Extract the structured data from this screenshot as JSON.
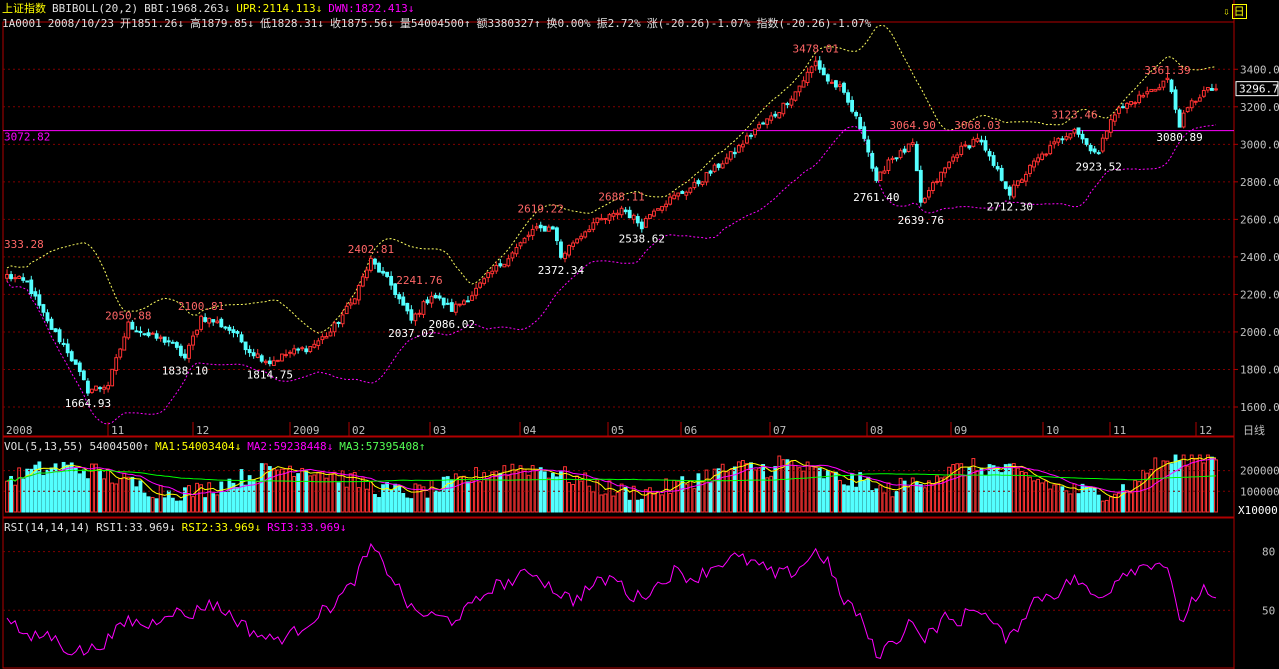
{
  "colors": {
    "up": "#ff3232",
    "down": "#54ffff",
    "upper": "#ffff60",
    "lower": "#ff00ff",
    "grid": "#800000",
    "axis": "#b00000",
    "level": "#ff00ff",
    "ma1": "#ffff00",
    "ma2": "#ff00ff",
    "ma3": "#00ff00",
    "rsi": "#ff00ff",
    "text": "#c0c0c0"
  },
  "header": {
    "index_name": "上证指数",
    "indicator": "BBIBOLL(20,2)",
    "bbi": "BBI:1968.263↓",
    "upr": "UPR:2114.113↓",
    "dwn": "DWN:1822.413↓",
    "code": "1A0001",
    "date": "2008/10/23",
    "open": "开1851.26↓",
    "high": "高1879.85↓",
    "low": "低1828.31↓",
    "close": "收1875.56↓",
    "volume": "量54004500↑",
    "amount": "额3380327↑",
    "turnover": "换0.00%",
    "amplitude": "振2.72%",
    "change": "涨(-20.26)-1.07%",
    "index_change": "指数(-20.26)-1.07%"
  },
  "corner_label": "日",
  "vol_header": {
    "name": "VOL(5,13,55)",
    "vol": "54004500↑",
    "ma1": "MA1:54003404↓",
    "ma2": "MA2:59238448↓",
    "ma3": "MA3:57395408↑"
  },
  "rsi_header": {
    "name": "RSI(14,14,14)",
    "rsi1": "RSI1:33.969↓",
    "rsi2": "RSI2:33.969↓",
    "rsi3": "RSI3:33.969↓"
  },
  "chart_data": [
    {
      "type": "candlestick",
      "y_ticks": [
        "3400.0",
        "3200.0",
        "3000.0",
        "2800.0",
        "2600.0",
        "2400.0",
        "2200.0",
        "2000.0",
        "1800.0",
        "1600.0"
      ],
      "ylim": [
        1520,
        3620
      ],
      "x_labels": [
        "2008",
        "11",
        "12",
        "2009",
        "02",
        "03",
        "04",
        "05",
        "06",
        "07",
        "08",
        "09",
        "10",
        "11",
        "12"
      ],
      "x_unit_label": "日线",
      "last_price": "3296.7",
      "level_line": {
        "value": 3072.82,
        "label": "3072.82"
      },
      "annotations": [
        {
          "text": "333.28",
          "x": 0,
          "y": 2436,
          "kind": "high",
          "anchor": "start"
        },
        {
          "text": "2050.88",
          "i": 30,
          "y": 2055,
          "kind": "high"
        },
        {
          "text": "2100.81",
          "i": 48,
          "y": 2105,
          "kind": "high"
        },
        {
          "text": "2402.81",
          "i": 90,
          "y": 2410,
          "kind": "high"
        },
        {
          "text": "2241.76",
          "i": 102,
          "y": 2245,
          "kind": "high"
        },
        {
          "text": "2619.22",
          "i": 132,
          "y": 2625,
          "kind": "high"
        },
        {
          "text": "2688.11",
          "i": 152,
          "y": 2690,
          "kind": "high"
        },
        {
          "text": "3478.01",
          "i": 200,
          "y": 3480,
          "kind": "high"
        },
        {
          "text": "3064.90",
          "i": 224,
          "y": 3070,
          "kind": "high"
        },
        {
          "text": "3068.03",
          "i": 240,
          "y": 3070,
          "kind": "high"
        },
        {
          "text": "3123.46",
          "i": 264,
          "y": 3128,
          "kind": "high"
        },
        {
          "text": "3361.39",
          "i": 287,
          "y": 3365,
          "kind": "high"
        },
        {
          "text": "1664.93",
          "i": 20,
          "y": 1665,
          "kind": "low"
        },
        {
          "text": "1838.10",
          "i": 44,
          "y": 1838,
          "kind": "low"
        },
        {
          "text": "1814.75",
          "i": 65,
          "y": 1815,
          "kind": "low"
        },
        {
          "text": "2037.02",
          "i": 100,
          "y": 2037,
          "kind": "low"
        },
        {
          "text": "2086.02",
          "i": 110,
          "y": 2086,
          "kind": "low"
        },
        {
          "text": "2372.34",
          "i": 137,
          "y": 2372,
          "kind": "low"
        },
        {
          "text": "2538.62",
          "i": 157,
          "y": 2540,
          "kind": "low"
        },
        {
          "text": "2761.40",
          "i": 215,
          "y": 2761,
          "kind": "low"
        },
        {
          "text": "2639.76",
          "i": 226,
          "y": 2640,
          "kind": "low"
        },
        {
          "text": "2712.30",
          "i": 248,
          "y": 2712,
          "kind": "low"
        },
        {
          "text": "2923.52",
          "i": 270,
          "y": 2924,
          "kind": "low"
        },
        {
          "text": "3080.89",
          "i": 290,
          "y": 3081,
          "kind": "low"
        }
      ],
      "close_anchors": [
        [
          0,
          2300
        ],
        [
          5,
          2260
        ],
        [
          10,
          2050
        ],
        [
          15,
          1900
        ],
        [
          20,
          1690
        ],
        [
          25,
          1720
        ],
        [
          30,
          2040
        ],
        [
          35,
          1980
        ],
        [
          40,
          1950
        ],
        [
          44,
          1860
        ],
        [
          48,
          2080
        ],
        [
          52,
          2050
        ],
        [
          56,
          2000
        ],
        [
          60,
          1900
        ],
        [
          65,
          1840
        ],
        [
          70,
          1890
        ],
        [
          75,
          1920
        ],
        [
          80,
          2000
        ],
        [
          85,
          2150
        ],
        [
          90,
          2380
        ],
        [
          95,
          2250
        ],
        [
          100,
          2060
        ],
        [
          105,
          2200
        ],
        [
          110,
          2120
        ],
        [
          115,
          2200
        ],
        [
          120,
          2320
        ],
        [
          125,
          2420
        ],
        [
          130,
          2540
        ],
        [
          135,
          2560
        ],
        [
          137,
          2400
        ],
        [
          140,
          2480
        ],
        [
          145,
          2580
        ],
        [
          150,
          2620
        ],
        [
          152,
          2660
        ],
        [
          157,
          2570
        ],
        [
          160,
          2660
        ],
        [
          165,
          2720
        ],
        [
          170,
          2780
        ],
        [
          175,
          2870
        ],
        [
          180,
          2960
        ],
        [
          185,
          3080
        ],
        [
          190,
          3160
        ],
        [
          195,
          3280
        ],
        [
          200,
          3440
        ],
        [
          203,
          3340
        ],
        [
          206,
          3300
        ],
        [
          209,
          3180
        ],
        [
          212,
          3050
        ],
        [
          215,
          2790
        ],
        [
          218,
          2920
        ],
        [
          221,
          2950
        ],
        [
          224,
          3000
        ],
        [
          226,
          2680
        ],
        [
          229,
          2780
        ],
        [
          232,
          2870
        ],
        [
          235,
          2960
        ],
        [
          238,
          3000
        ],
        [
          240,
          3040
        ],
        [
          243,
          2920
        ],
        [
          246,
          2820
        ],
        [
          248,
          2740
        ],
        [
          251,
          2820
        ],
        [
          254,
          2900
        ],
        [
          257,
          2960
        ],
        [
          260,
          3020
        ],
        [
          264,
          3090
        ],
        [
          267,
          3000
        ],
        [
          270,
          2950
        ],
        [
          273,
          3150
        ],
        [
          276,
          3200
        ],
        [
          280,
          3250
        ],
        [
          284,
          3300
        ],
        [
          287,
          3350
        ],
        [
          290,
          3110
        ],
        [
          293,
          3220
        ],
        [
          296,
          3280
        ],
        [
          299,
          3296.7
        ]
      ],
      "candle_count": 300
    },
    {
      "type": "volume-bar",
      "y_ticks": [
        "200000",
        "100000"
      ],
      "unit_label": "X10000",
      "series": [
        {
          "name": "MA1"
        },
        {
          "name": "MA2"
        },
        {
          "name": "MA3"
        }
      ]
    },
    {
      "type": "line",
      "y_ticks": [
        "80",
        "50"
      ],
      "series_name": "RSI",
      "ylim": [
        20,
        90
      ],
      "anchors": [
        [
          0,
          48
        ],
        [
          5,
          35
        ],
        [
          10,
          38
        ],
        [
          15,
          30
        ],
        [
          20,
          29
        ],
        [
          25,
          35
        ],
        [
          30,
          45
        ],
        [
          35,
          42
        ],
        [
          40,
          50
        ],
        [
          45,
          47
        ],
        [
          50,
          54
        ],
        [
          55,
          48
        ],
        [
          60,
          40
        ],
        [
          65,
          35
        ],
        [
          70,
          37
        ],
        [
          75,
          45
        ],
        [
          80,
          52
        ],
        [
          85,
          62
        ],
        [
          90,
          82
        ],
        [
          95,
          68
        ],
        [
          100,
          50
        ],
        [
          105,
          47
        ],
        [
          110,
          45
        ],
        [
          115,
          52
        ],
        [
          120,
          62
        ],
        [
          125,
          65
        ],
        [
          130,
          70
        ],
        [
          135,
          61
        ],
        [
          140,
          55
        ],
        [
          145,
          63
        ],
        [
          150,
          67
        ],
        [
          155,
          56
        ],
        [
          160,
          61
        ],
        [
          165,
          70
        ],
        [
          170,
          66
        ],
        [
          175,
          73
        ],
        [
          180,
          77
        ],
        [
          185,
          74
        ],
        [
          190,
          68
        ],
        [
          195,
          70
        ],
        [
          200,
          80
        ],
        [
          203,
          75
        ],
        [
          206,
          57
        ],
        [
          209,
          52
        ],
        [
          212,
          42
        ],
        [
          215,
          27
        ],
        [
          218,
          32
        ],
        [
          221,
          37
        ],
        [
          224,
          47
        ],
        [
          226,
          34
        ],
        [
          229,
          40
        ],
        [
          232,
          46
        ],
        [
          235,
          43
        ],
        [
          238,
          50
        ],
        [
          240,
          52
        ],
        [
          243,
          45
        ],
        [
          246,
          38
        ],
        [
          248,
          35
        ],
        [
          251,
          46
        ],
        [
          254,
          55
        ],
        [
          257,
          58
        ],
        [
          260,
          59
        ],
        [
          264,
          67
        ],
        [
          267,
          60
        ],
        [
          270,
          56
        ],
        [
          273,
          62
        ],
        [
          276,
          70
        ],
        [
          280,
          72
        ],
        [
          284,
          75
        ],
        [
          287,
          73
        ],
        [
          290,
          42
        ],
        [
          293,
          55
        ],
        [
          296,
          60
        ],
        [
          299,
          53
        ]
      ]
    }
  ]
}
